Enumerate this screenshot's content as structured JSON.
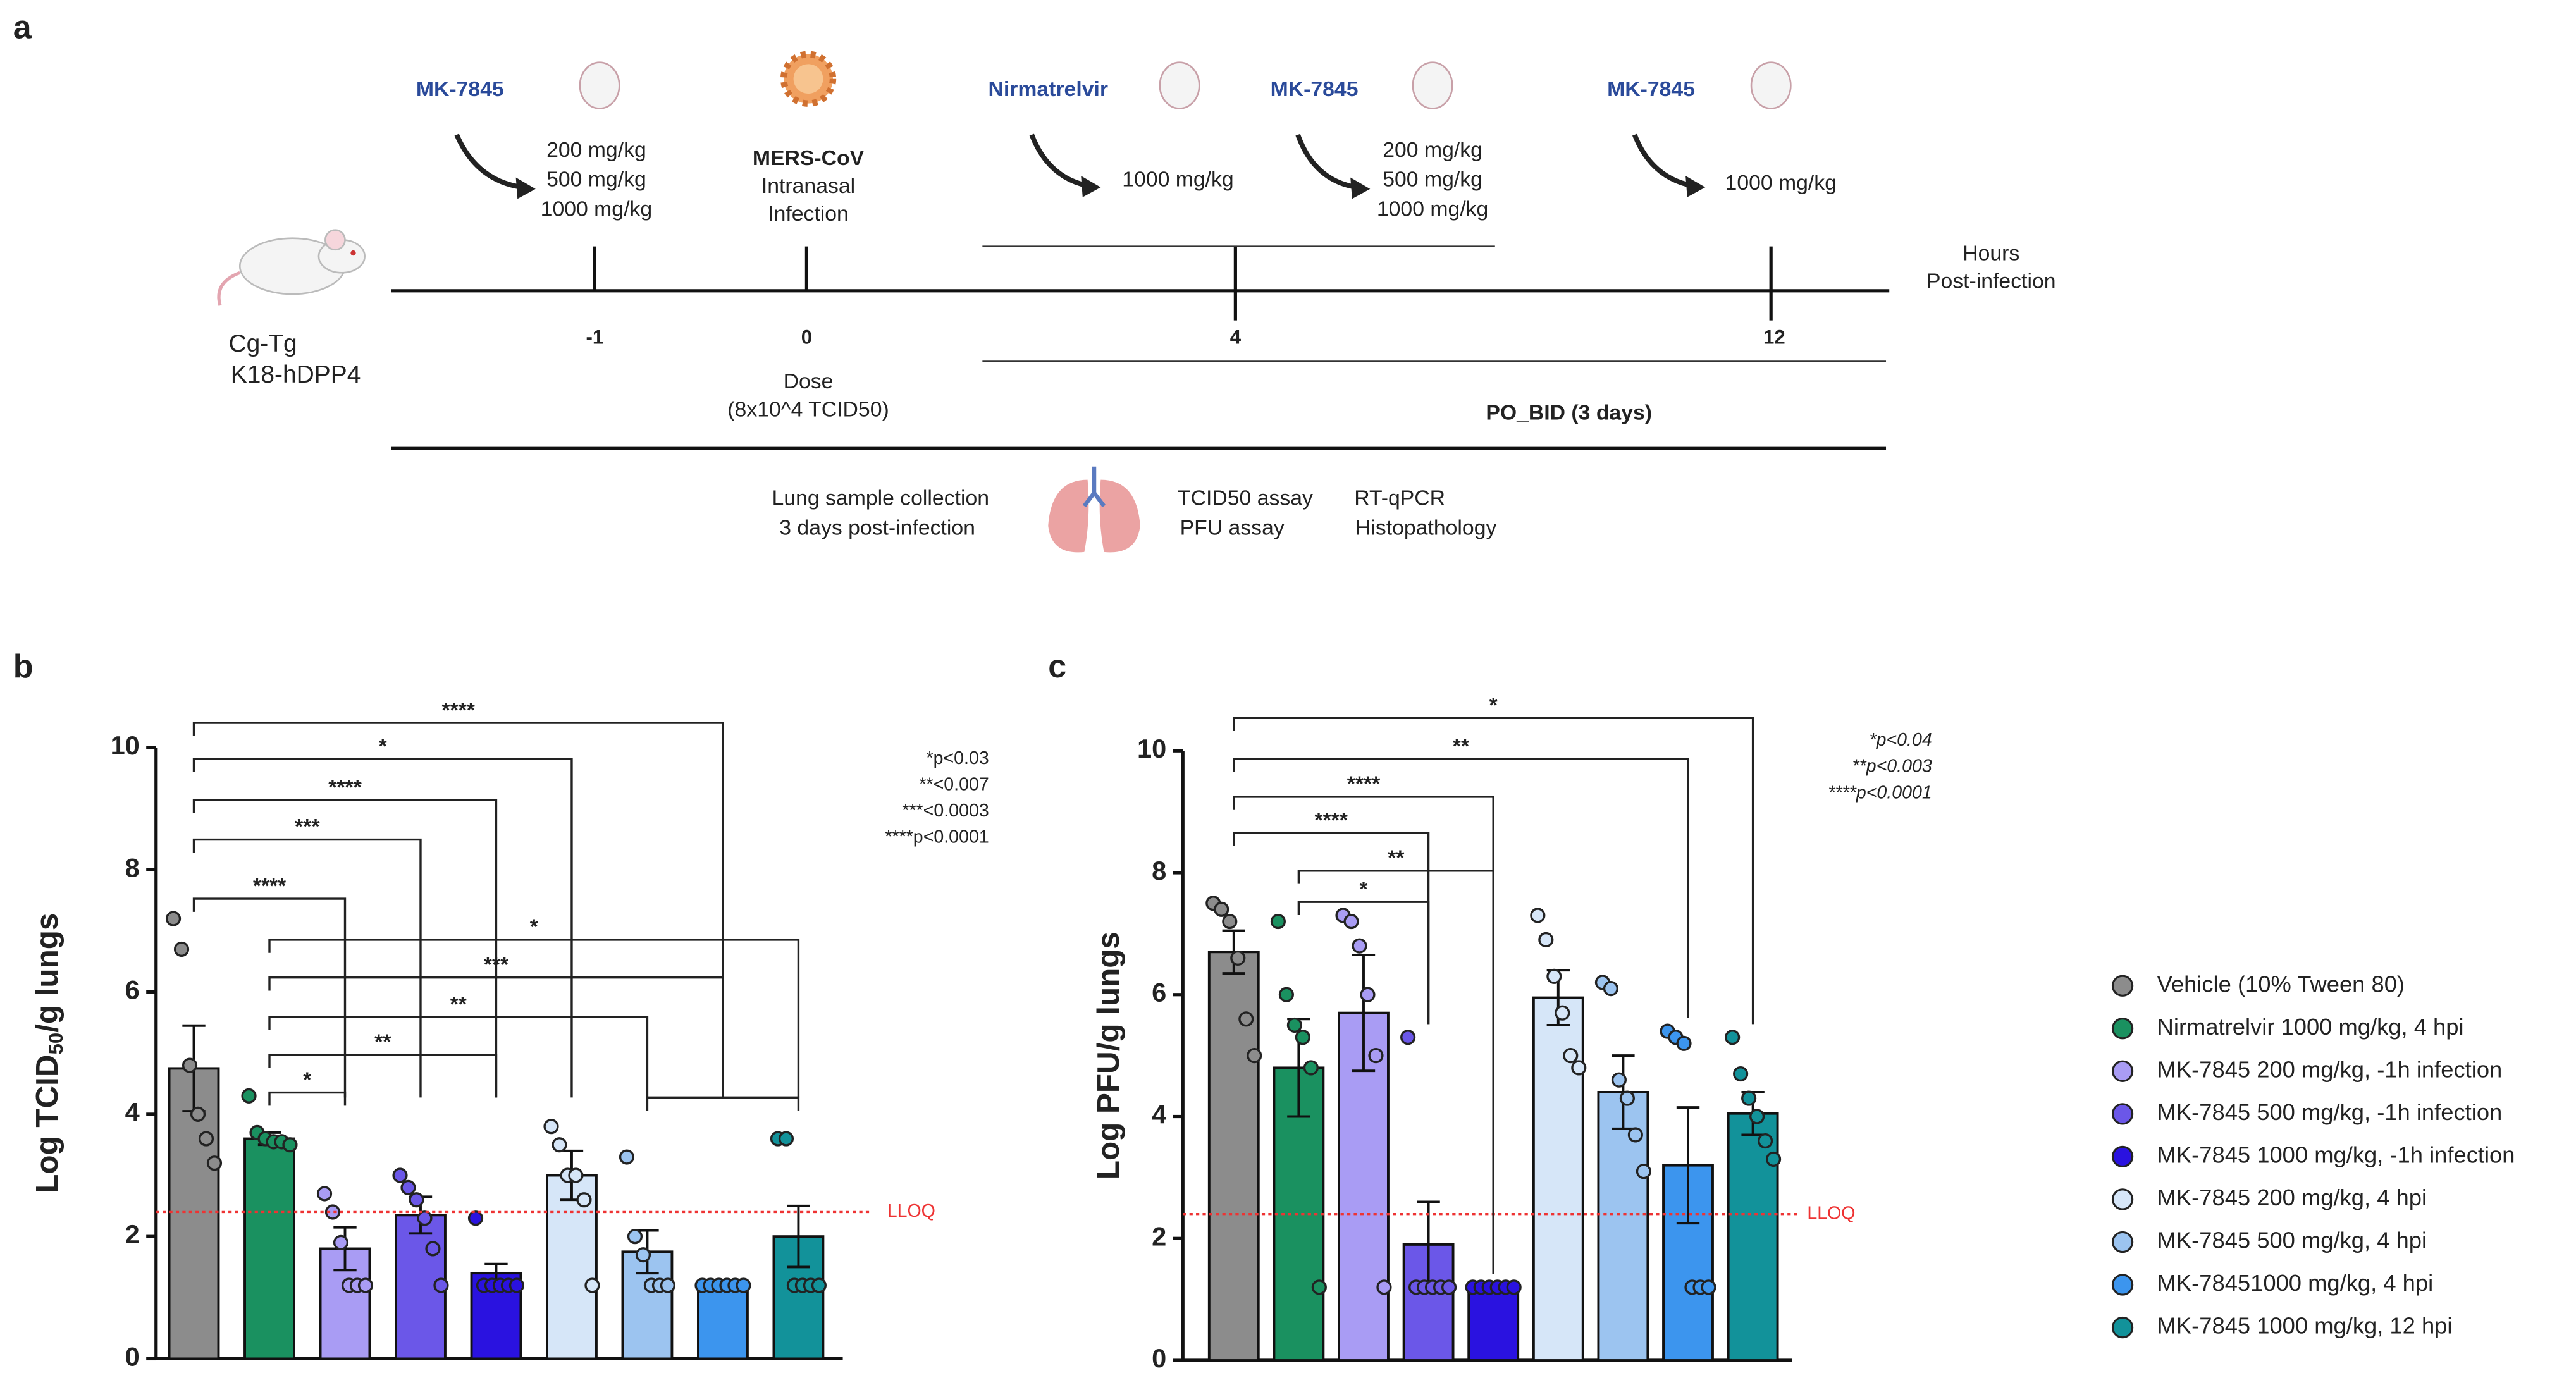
{
  "panel_a": {
    "label": "a",
    "model": [
      "Cg-Tg",
      "K18-hDPP4"
    ],
    "drugs": [
      "MK-7845",
      "Nirmatrelvir",
      "MK-7845",
      "MK-7845"
    ],
    "doses": [
      [
        "200 mg/kg",
        "500 mg/kg",
        "1000 mg/kg"
      ],
      [
        "1000 mg/kg"
      ],
      [
        "200 mg/kg",
        "500 mg/kg",
        "1000 mg/kg"
      ],
      [
        "1000 mg/kg"
      ]
    ],
    "infection": [
      "MERS-CoV",
      "Intranasal",
      "Infection"
    ],
    "timeline_ticks": [
      "-1",
      "0",
      "4",
      "12"
    ],
    "axis_label": [
      "Hours",
      "Post-infection"
    ],
    "dose": [
      "Dose",
      "(8x10^4 TCID50)"
    ],
    "regimen": "PO_BID (3 days)",
    "collection": [
      "Lung sample collection",
      "3 days post-infection"
    ],
    "assays": [
      [
        "TCID50 assay",
        "PFU assay"
      ],
      [
        "RT-qPCR",
        "Histopathology"
      ]
    ]
  },
  "legend": [
    {
      "name": "Vehicle (10% Tween 80)",
      "color": "#8c8c8c"
    },
    {
      "name": "Nirmatrelvir 1000 mg/kg, 4 hpi",
      "color": "#1a9160"
    },
    {
      "name": "MK-7845 200 mg/kg, -1h infection",
      "color": "#a99cf4"
    },
    {
      "name": "MK-7845 500 mg/kg, -1h infection",
      "color": "#6b57e8"
    },
    {
      "name": "MK-7845 1000 mg/kg, -1h infection",
      "color": "#2a12e0"
    },
    {
      "name": "MK-7845 200 mg/kg, 4 hpi",
      "color": "#d6e6f8"
    },
    {
      "name": "MK-7845 500 mg/kg, 4 hpi",
      "color": "#9cc4f0"
    },
    {
      "name": "MK-78451000 mg/kg, 4 hpi",
      "color": "#3c95ee"
    },
    {
      "name": "MK-7845 1000 mg/kg, 12 hpi",
      "color": "#12929a"
    }
  ],
  "chart_data": [
    {
      "type": "bar",
      "panel": "b",
      "ylabel": [
        "Log TCID",
        "50",
        "/g lungs"
      ],
      "ylim": [
        0,
        10
      ],
      "yticks": [
        0,
        2,
        4,
        6,
        8,
        10
      ],
      "values": [
        4.75,
        3.6,
        1.8,
        2.35,
        1.4,
        3.0,
        1.75,
        1.2,
        2.0
      ],
      "errors": [
        0.7,
        0.1,
        0.35,
        0.3,
        0.15,
        0.4,
        0.35,
        0,
        0.5
      ],
      "points": [
        [
          7.2,
          6.7,
          4.8,
          4.0,
          3.6,
          3.2
        ],
        [
          4.3,
          3.7,
          3.6,
          3.55,
          3.55,
          3.5
        ],
        [
          2.7,
          2.4,
          1.9,
          1.2,
          1.2,
          1.2
        ],
        [
          3.0,
          2.8,
          2.6,
          2.3,
          1.8,
          1.2
        ],
        [
          2.3,
          1.2,
          1.2,
          1.2,
          1.2,
          1.2
        ],
        [
          3.8,
          3.5,
          3.0,
          3.0,
          2.6,
          1.2
        ],
        [
          3.3,
          2.0,
          1.7,
          1.2,
          1.2,
          1.2
        ],
        [
          1.2,
          1.2,
          1.2,
          1.2,
          1.2,
          1.2
        ],
        [
          3.6,
          3.6,
          1.2,
          1.2,
          1.2,
          1.2
        ]
      ],
      "lloq": 2.4,
      "lloq_label": "LLOQ",
      "significance": [
        {
          "label": "****",
          "from": 0,
          "to": 7
        },
        {
          "label": "*",
          "from": 0,
          "to": 5
        },
        {
          "label": "****",
          "from": 0,
          "to": 4
        },
        {
          "label": "***",
          "from": 0,
          "to": 3
        },
        {
          "label": "****",
          "from": 0,
          "to": 2
        },
        {
          "from": 6,
          "to": 8
        },
        {
          "label": "*",
          "from": 1,
          "to": 8
        },
        {
          "label": "***",
          "from": 1,
          "to": 7
        },
        {
          "label": "**",
          "from": 1,
          "to": 6
        },
        {
          "label": "**",
          "from": 1,
          "to": 4
        },
        {
          "label": "*",
          "from": 1,
          "to": 2
        }
      ],
      "notes": [
        "*p<0.03",
        "**<0.007",
        "***<0.0003",
        "****p<0.0001"
      ]
    },
    {
      "type": "bar",
      "panel": "c",
      "ylabel": [
        "Log PFU/g lungs"
      ],
      "ylim": [
        0,
        10
      ],
      "yticks": [
        0,
        2,
        4,
        6,
        8,
        10
      ],
      "values": [
        6.7,
        4.8,
        5.7,
        1.9,
        1.2,
        5.95,
        4.4,
        3.2,
        4.05
      ],
      "errors": [
        0.35,
        0.8,
        0.95,
        0.7,
        0,
        0.45,
        0.6,
        0.95,
        0.35
      ],
      "points": [
        [
          7.5,
          7.4,
          7.2,
          6.6,
          5.6,
          5.0
        ],
        [
          7.2,
          6.0,
          5.5,
          5.3,
          4.8,
          1.2
        ],
        [
          7.3,
          7.2,
          6.8,
          6.0,
          5.0,
          1.2
        ],
        [
          5.3,
          1.2,
          1.2,
          1.2,
          1.2,
          1.2
        ],
        [
          1.2,
          1.2,
          1.2,
          1.2,
          1.2,
          1.2
        ],
        [
          7.3,
          6.9,
          6.3,
          5.7,
          5.0,
          4.8
        ],
        [
          6.2,
          6.1,
          4.6,
          4.3,
          3.7,
          3.1
        ],
        [
          5.4,
          5.3,
          5.2,
          1.2,
          1.2,
          1.2
        ],
        [
          5.3,
          4.7,
          4.3,
          4.0,
          3.6,
          3.3
        ]
      ],
      "lloq": 2.4,
      "lloq_label": "LLOQ",
      "significance": [
        {
          "label": "*",
          "from": 0,
          "to": 8
        },
        {
          "label": "**",
          "from": 0,
          "to": 7
        },
        {
          "label": "****",
          "from": 0,
          "to": 4
        },
        {
          "label": "****",
          "from": 0,
          "to": 3
        },
        {
          "label": "**",
          "from": 1,
          "to": 4
        },
        {
          "label": "*",
          "from": 1,
          "to": 3
        }
      ],
      "notes": [
        "*p<0.04",
        "**p<0.003",
        "****p<0.0001"
      ]
    }
  ]
}
